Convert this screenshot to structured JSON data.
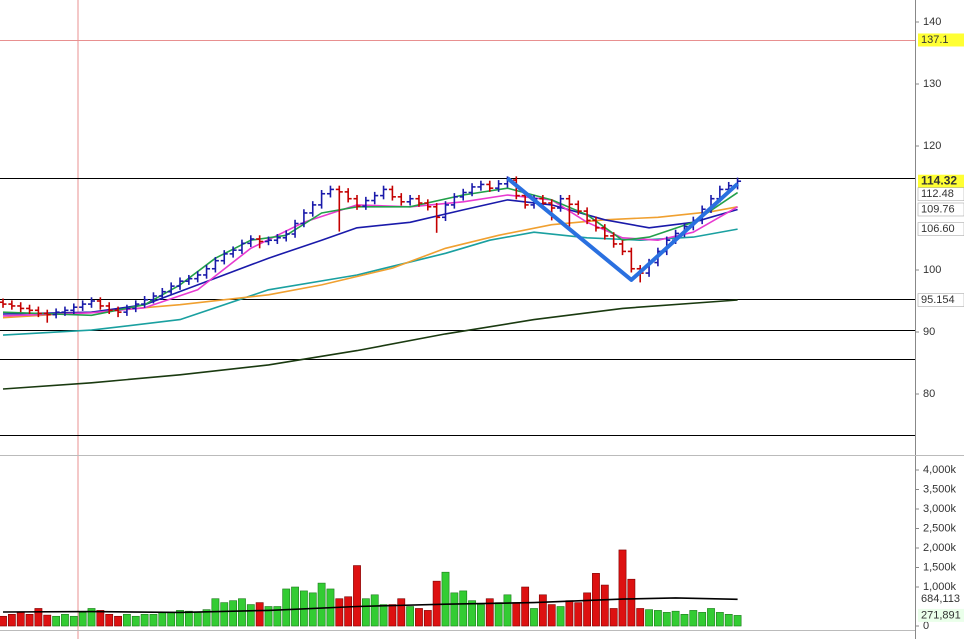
{
  "chart_data": [
    {
      "type": "ohlc",
      "xlim": [
        -0.34,
        103.05
      ],
      "ylim": [
        70.16,
        143.55
      ],
      "yticks": [
        80,
        90,
        100,
        120,
        130,
        140
      ],
      "up_color": "#1a1aaa",
      "down_color": "#c40000",
      "open": [
        94.8,
        94.5,
        94.2,
        93.8,
        93.5,
        93.0,
        92.8,
        93.2,
        93.5,
        94.0,
        94.5,
        95.0,
        94.2,
        93.5,
        93.2,
        93.8,
        94.5,
        95.2,
        95.8,
        96.5,
        97.4,
        98.2,
        98.6,
        99.2,
        100.2,
        101.5,
        102.6,
        103.2,
        104.3,
        105.0,
        104.6,
        104.8,
        105.2,
        105.8,
        107.5,
        109.2,
        110.5,
        112.3,
        113.0,
        112.6,
        111.5,
        110.3,
        111.2,
        112.0,
        113.0,
        111.8,
        111.0,
        111.5,
        110.8,
        110.2,
        108.5,
        110.5,
        111.8,
        112.5,
        113.4,
        113.8,
        113.2,
        113.9,
        114.5,
        112.0,
        110.5,
        111.5,
        110.8,
        110.0,
        111.5,
        110.6,
        109.5,
        108.0,
        106.8,
        105.5,
        104.2,
        103.0,
        100.2,
        99.5,
        101.2,
        103.0,
        104.8,
        105.9,
        107.0,
        108.0,
        109.8,
        111.5,
        113.0,
        113.6
      ],
      "high": [
        95.4,
        95.1,
        94.8,
        94.4,
        94.1,
        93.6,
        93.8,
        94.1,
        94.6,
        95.1,
        95.6,
        95.6,
        94.8,
        94.1,
        94.4,
        95.1,
        95.8,
        96.4,
        97.1,
        98.0,
        98.8,
        99.2,
        99.8,
        100.8,
        102.1,
        103.2,
        103.8,
        104.9,
        105.6,
        105.6,
        105.4,
        105.8,
        106.4,
        108.1,
        109.8,
        111.1,
        112.9,
        113.6,
        113.6,
        113.2,
        112.1,
        111.8,
        112.6,
        113.6,
        113.6,
        112.4,
        112.1,
        112.1,
        111.4,
        110.8,
        111.1,
        112.4,
        113.1,
        114.0,
        114.4,
        114.4,
        114.5,
        115.1,
        115.1,
        112.6,
        112.1,
        112.1,
        111.4,
        112.1,
        112.1,
        111.2,
        110.1,
        108.6,
        107.4,
        106.1,
        104.8,
        103.6,
        100.8,
        101.8,
        103.6,
        105.4,
        106.5,
        107.6,
        108.6,
        110.4,
        112.1,
        113.6,
        114.2,
        114.9
      ],
      "low": [
        93.9,
        93.6,
        93.2,
        92.9,
        92.4,
        91.5,
        92.2,
        92.6,
        92.9,
        93.4,
        93.9,
        93.6,
        92.9,
        92.4,
        92.6,
        93.2,
        93.9,
        94.6,
        95.2,
        95.9,
        96.8,
        97.6,
        98.0,
        98.6,
        99.6,
        100.9,
        102.0,
        102.6,
        103.7,
        103.5,
        104.0,
        104.2,
        104.6,
        105.2,
        106.9,
        108.6,
        109.9,
        111.7,
        106.2,
        110.9,
        109.7,
        109.7,
        110.6,
        111.4,
        111.2,
        110.4,
        110.4,
        110.2,
        109.6,
        106.0,
        107.9,
        109.9,
        111.2,
        111.9,
        112.8,
        112.6,
        112.6,
        113.3,
        111.4,
        109.9,
        109.9,
        110.2,
        108.0,
        109.4,
        107.0,
        108.9,
        107.4,
        106.2,
        104.9,
        103.6,
        102.4,
        99.6,
        98.0,
        98.9,
        100.6,
        102.4,
        104.2,
        105.3,
        106.4,
        107.4,
        109.2,
        110.9,
        112.4,
        113.0
      ],
      "close": [
        94.5,
        94.2,
        93.8,
        93.5,
        93.0,
        92.8,
        93.2,
        93.5,
        94.0,
        94.5,
        95.0,
        94.2,
        93.5,
        93.2,
        93.8,
        94.5,
        95.2,
        95.8,
        96.5,
        97.4,
        98.2,
        98.6,
        99.2,
        100.2,
        101.5,
        102.6,
        103.2,
        104.3,
        105.0,
        104.6,
        104.8,
        105.2,
        105.8,
        107.5,
        109.2,
        110.5,
        112.3,
        113.0,
        112.6,
        111.5,
        110.3,
        111.2,
        112.0,
        113.0,
        111.8,
        111.0,
        111.5,
        110.8,
        110.2,
        108.5,
        110.5,
        111.8,
        112.5,
        113.4,
        113.8,
        113.2,
        113.9,
        114.5,
        112.0,
        110.5,
        111.5,
        110.8,
        110.0,
        111.5,
        110.6,
        109.5,
        108.0,
        106.8,
        105.5,
        104.2,
        103.0,
        100.2,
        99.5,
        101.2,
        103.0,
        104.8,
        105.9,
        107.0,
        108.0,
        109.8,
        111.5,
        113.0,
        113.6,
        114.32
      ],
      "lines": [
        {
          "color": "#1a3a10",
          "x": [
            0,
            10,
            20,
            30,
            40,
            50,
            60,
            70,
            83
          ],
          "values": [
            80.8,
            81.8,
            83.1,
            84.7,
            87.0,
            89.7,
            92.0,
            93.8,
            95.154
          ],
          "label": "95.154"
        },
        {
          "color": "#1aa0a0",
          "x": [
            0,
            10,
            20,
            30,
            40,
            50,
            55,
            60,
            66,
            72,
            78,
            83
          ],
          "values": [
            89.5,
            90.3,
            92.0,
            96.8,
            99.2,
            102.7,
            104.8,
            106.1,
            105.2,
            104.8,
            105.3,
            106.6
          ],
          "label": "106.60"
        },
        {
          "color": "#f0a030",
          "x": [
            0,
            10,
            20,
            30,
            36,
            44,
            50,
            56,
            62,
            68,
            74,
            80,
            83
          ],
          "values": [
            92.3,
            93.2,
            94.4,
            96.0,
            97.6,
            100.3,
            103.5,
            105.6,
            107.3,
            108.1,
            108.5,
            109.4,
            110.2
          ]
        },
        {
          "color": "#1a1aaa",
          "x": [
            0,
            10,
            16,
            22,
            30,
            36,
            40,
            46,
            52,
            57,
            62,
            68,
            73,
            78,
            83
          ],
          "values": [
            92.9,
            93.2,
            94.4,
            97.6,
            101.9,
            104.8,
            106.8,
            107.7,
            109.7,
            111.3,
            110.5,
            108.1,
            106.8,
            107.7,
            109.76
          ],
          "label": "109.76"
        },
        {
          "color": "#e83ad0",
          "x": [
            0,
            10,
            16,
            22,
            28,
            34,
            40,
            46,
            52,
            57,
            62,
            66,
            70,
            74,
            78,
            83
          ],
          "values": [
            92.6,
            93.1,
            93.9,
            96.8,
            103.5,
            107.7,
            110.5,
            110.2,
            111.0,
            112.1,
            111.3,
            107.7,
            105.2,
            104.8,
            106.1,
            110.2
          ]
        },
        {
          "color": "#22a04a",
          "x": [
            0,
            10,
            16,
            20,
            24,
            28,
            32,
            36,
            40,
            46,
            52,
            57,
            62,
            66,
            70,
            73,
            78,
            83
          ],
          "values": [
            93.2,
            92.7,
            94.4,
            97.6,
            101.9,
            104.8,
            105.6,
            109.2,
            110.2,
            110.2,
            112.1,
            113.2,
            111.3,
            108.9,
            104.8,
            105.3,
            107.7,
            112.48
          ],
          "label": "112.48"
        }
      ],
      "trendline": {
        "color": "#2a70e0",
        "x": [
          57,
          71,
          83
        ],
        "values": [
          114.8,
          98.4,
          113.9
        ]
      },
      "levels": [
        {
          "value": 137.1,
          "color": "#e89090"
        },
        {
          "value": 114.8,
          "color": "#000000"
        },
        {
          "value": 95.3,
          "color": "#000000"
        },
        {
          "value": 90.3,
          "color": "#000000"
        },
        {
          "value": 85.6,
          "color": "#000000"
        },
        {
          "value": 73.4,
          "color": "#000000"
        }
      ]
    },
    {
      "type": "bar",
      "xlim": [
        -0.34,
        103.05
      ],
      "ylim": [
        -333000,
        4333000
      ],
      "yticks": [
        {
          "value": 4000000,
          "label": "4,000k"
        },
        {
          "value": 3500000,
          "label": "3,500k"
        },
        {
          "value": 3000000,
          "label": "3,000k"
        },
        {
          "value": 2500000,
          "label": "2,500k"
        },
        {
          "value": 2000000,
          "label": "2,000k"
        },
        {
          "value": 1500000,
          "label": "1,500k"
        },
        {
          "value": 1000000,
          "label": "1,000k"
        },
        0
      ],
      "up_color": "#33cc33",
      "down_color": "#dd1111",
      "values": [
        250000,
        300000,
        350000,
        300000,
        450000,
        280000,
        250000,
        300000,
        250000,
        350000,
        450000,
        400000,
        300000,
        250000,
        300000,
        250000,
        300000,
        300000,
        350000,
        350000,
        400000,
        380000,
        350000,
        420000,
        700000,
        600000,
        650000,
        700000,
        550000,
        600000,
        500000,
        500000,
        950000,
        1000000,
        900000,
        850000,
        1100000,
        950000,
        700000,
        750000,
        1550000,
        700000,
        800000,
        550000,
        550000,
        700000,
        500000,
        450000,
        400000,
        1150000,
        1380000,
        850000,
        900000,
        650000,
        550000,
        700000,
        600000,
        800000,
        600000,
        1000000,
        450000,
        800000,
        550000,
        500000,
        650000,
        600000,
        850000,
        1350000,
        1050000,
        450000,
        1950000,
        1200000,
        450000,
        420000,
        400000,
        350000,
        380000,
        300000,
        400000,
        350000,
        450000,
        350000,
        300000,
        271891
      ],
      "last_label": "271,891",
      "average": {
        "color": "#000000",
        "x": [
          0,
          10,
          20,
          30,
          40,
          50,
          60,
          70,
          76,
          83
        ],
        "values": [
          360000,
          370000,
          350000,
          400000,
          500000,
          560000,
          600000,
          690000,
          720000,
          684113
        ],
        "label": "684,113"
      }
    }
  ]
}
